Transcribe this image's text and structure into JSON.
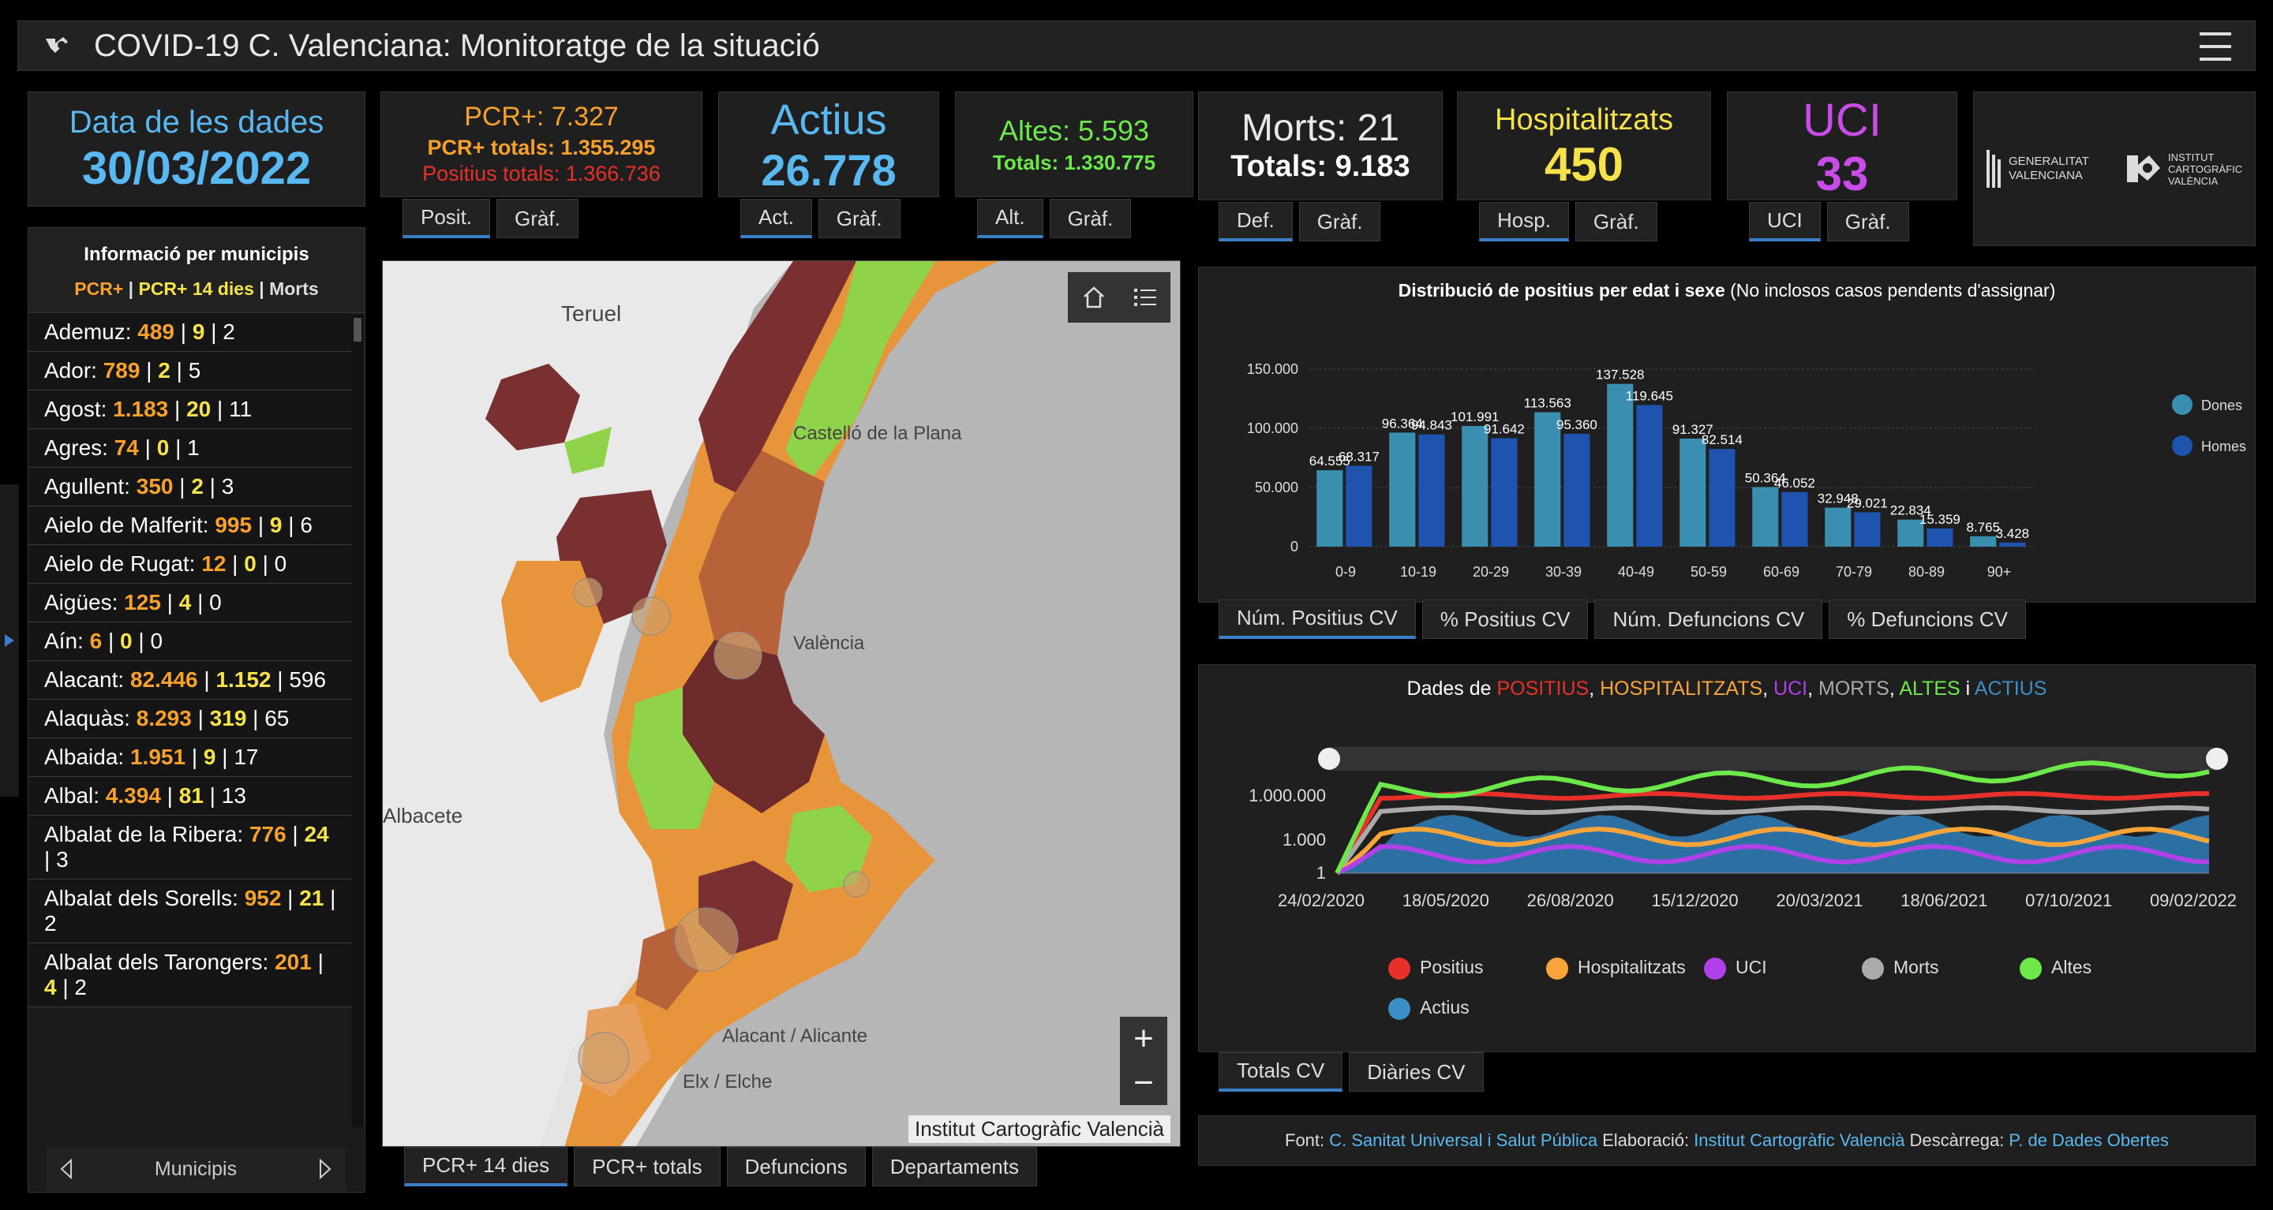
{
  "header": {
    "title": "COVID-19 C. Valenciana: Monitoratge de la situació"
  },
  "date_card": {
    "label": "Data de les dades",
    "value": "30/03/2022"
  },
  "pcr_card": {
    "title": "PCR+: 7.327",
    "totals": "PCR+ totals: 1.355.295",
    "positius": "Positius totals: 1.366.736",
    "tabs": [
      "Posit.",
      "Gràf."
    ]
  },
  "actius_card": {
    "title": "Actius",
    "value": "26.778",
    "tabs": [
      "Act.",
      "Gràf."
    ]
  },
  "altes_card": {
    "title": "Altes: 5.593",
    "totals": "Totals: 1.330.775",
    "tabs": [
      "Alt.",
      "Gràf."
    ]
  },
  "morts_card": {
    "title": "Morts: 21",
    "totals": "Totals: 9.183",
    "tabs": [
      "Def.",
      "Gràf."
    ]
  },
  "hosp_card": {
    "title": "Hospitalitzats",
    "value": "450",
    "tabs": [
      "Hosp.",
      "Gràf."
    ]
  },
  "uci_card": {
    "title": "UCI",
    "value": "33",
    "tabs": [
      "UCI",
      "Gràf."
    ]
  },
  "logos": {
    "gv": "GENERALITAT VALENCIANA",
    "icv": "INSTITUT CARTOGRÀFIC VALÈNCIA"
  },
  "sidebar": {
    "title": "Informació per municipis",
    "legend_a": "PCR+",
    "legend_b": "PCR+ 14 dies",
    "legend_c": "Morts",
    "footer": "Municipis",
    "items": [
      {
        "name": "Ademuz:",
        "a": "489",
        "b": "9",
        "c": "2"
      },
      {
        "name": "Ador:",
        "a": "789",
        "b": "2",
        "c": "5"
      },
      {
        "name": "Agost:",
        "a": "1.183",
        "b": "20",
        "c": "11"
      },
      {
        "name": "Agres:",
        "a": "74",
        "b": "0",
        "c": "1"
      },
      {
        "name": "Agullent:",
        "a": "350",
        "b": "2",
        "c": "3"
      },
      {
        "name": "Aielo de Malferit:",
        "a": "995",
        "b": "9",
        "c": "6"
      },
      {
        "name": "Aielo de Rugat:",
        "a": "12",
        "b": "0",
        "c": "0"
      },
      {
        "name": "Aigües:",
        "a": "125",
        "b": "4",
        "c": "0"
      },
      {
        "name": "Aín:",
        "a": "6",
        "b": "0",
        "c": "0"
      },
      {
        "name": "Alacant:",
        "a": "82.446",
        "b": "1.152",
        "c": "596"
      },
      {
        "name": "Alaquàs:",
        "a": "8.293",
        "b": "319",
        "c": "65"
      },
      {
        "name": "Albaida:",
        "a": "1.951",
        "b": "9",
        "c": "17"
      },
      {
        "name": "Albal:",
        "a": "4.394",
        "b": "81",
        "c": "13"
      },
      {
        "name": "Albalat de la Ribera:",
        "a": "776",
        "b": "24",
        "c": "3"
      },
      {
        "name": "Albalat dels Sorells:",
        "a": "952",
        "b": "21",
        "c": "2"
      },
      {
        "name": "Albalat dels Tarongers:",
        "a": "201",
        "b": "4",
        "c": "2"
      }
    ]
  },
  "map": {
    "labels": [
      "Teruel",
      "Castelló de la Plana",
      "València",
      "Albacete",
      "Alacant / Alicante",
      "Elx / Elche"
    ],
    "attribution": "Institut Cartogràfic Valencià",
    "tabs": [
      "PCR+ 14 dies",
      "PCR+ totals",
      "Defuncions",
      "Departaments"
    ]
  },
  "chart_data": [
    {
      "type": "bar",
      "title": "Distribució de positius per edat i sexe",
      "subtitle": "(No inclosos casos pendents d'assignar)",
      "categories": [
        "0-9",
        "10-19",
        "20-29",
        "30-39",
        "40-49",
        "50-59",
        "60-69",
        "70-79",
        "80-89",
        "90+"
      ],
      "series": [
        {
          "name": "Dones",
          "values": [
            64555,
            96364,
            101991,
            113563,
            137528,
            91327,
            50364,
            32948,
            22834,
            8765
          ]
        },
        {
          "name": "Homes",
          "values": [
            68317,
            94843,
            91642,
            95360,
            119645,
            82514,
            46052,
            29021,
            15359,
            3428
          ]
        }
      ],
      "value_labels": {
        "Dones": [
          "64.555",
          "96.364",
          "101.991",
          "113.563",
          "137.528",
          "91.327",
          "50.364",
          "32.948",
          "22.834",
          "8.765"
        ],
        "Homes": [
          "68.317",
          "94.843",
          "91.642",
          "95.360",
          "119.645",
          "82.514",
          "46.052",
          "29.021",
          "15.359",
          "3.428"
        ]
      },
      "yticks": [
        "150.000",
        "100.000",
        "50.000",
        "0"
      ],
      "ylim": [
        0,
        150000
      ],
      "legend": "right",
      "colors": {
        "Dones": "#3a8fb0",
        "Homes": "#1f53b0"
      }
    },
    {
      "type": "area",
      "title_parts": [
        "Dades de ",
        "POSITIUS",
        ", ",
        "HOSPITALITZATS",
        ", ",
        "UCI",
        ", ",
        "MORTS",
        ", ",
        "ALTES",
        " i ",
        "ACTIUS"
      ],
      "xticks": [
        "24/02/2020",
        "18/05/2020",
        "26/08/2020",
        "15/12/2020",
        "20/03/2021",
        "18/06/2021",
        "07/10/2021",
        "09/02/2022"
      ],
      "yticks": [
        "1.000.000",
        "1.000",
        "1"
      ],
      "scale": "log",
      "series": [
        {
          "name": "Positius",
          "color": "#e8302a"
        },
        {
          "name": "Hospitalitzats",
          "color": "#f7a53a"
        },
        {
          "name": "UCI",
          "color": "#b040e8"
        },
        {
          "name": "Morts",
          "color": "#aaaaaa"
        },
        {
          "name": "Altes",
          "color": "#6de84a"
        },
        {
          "name": "Actius",
          "color": "#3b8fc4"
        }
      ]
    }
  ],
  "chart1_tabs": [
    "Núm. Positius CV",
    "% Positius CV",
    "Núm. Defuncions CV",
    "% Defuncions CV"
  ],
  "chart2_tabs": [
    "Totals CV",
    "Diàries CV"
  ],
  "footer": {
    "font_label": "Font:",
    "font_link": "C. Sanitat Universal i Salut Pública",
    "elab_label": "Elaboració:",
    "elab_link": "Institut Cartogràfic Valencià",
    "desc_label": "Descàrrega:",
    "desc_link": "P. de Dades Obertes"
  }
}
